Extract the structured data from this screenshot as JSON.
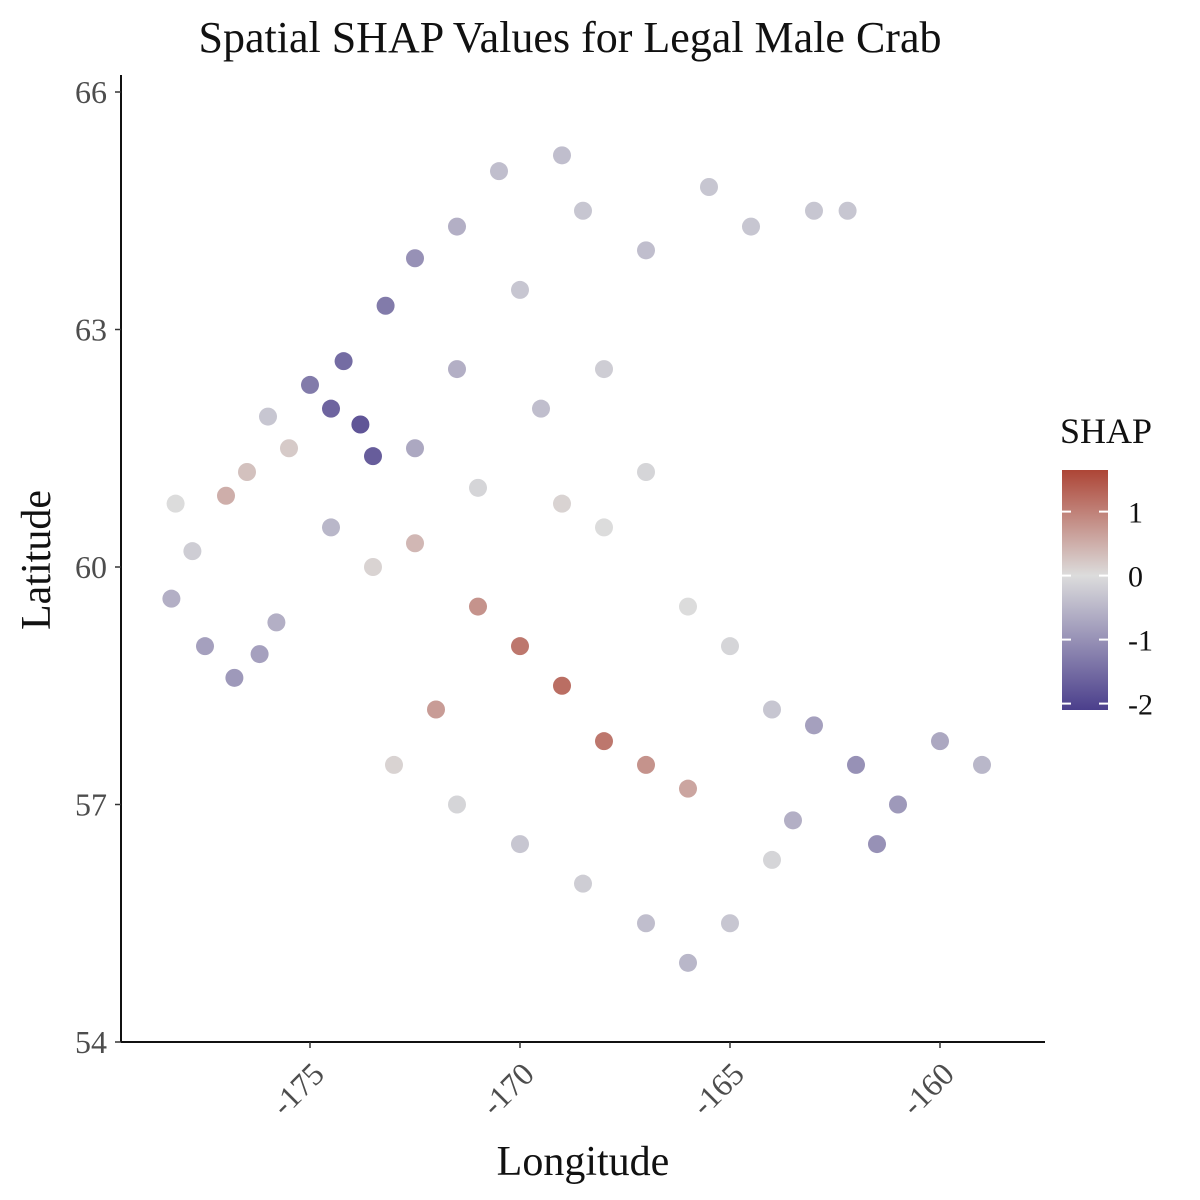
{
  "chart_data": {
    "type": "scatter",
    "title": "Spatial SHAP Values for Legal Male Crab",
    "xlabel": "Longitude",
    "ylabel": "Latitude",
    "xlim": [
      -179.5,
      -157.5
    ],
    "ylim": [
      54,
      66
    ],
    "x_ticks": [
      -175,
      -170,
      -165,
      -160
    ],
    "x_tick_labels": [
      "-175",
      "-170",
      "-165",
      "-160"
    ],
    "y_ticks": [
      54,
      57,
      60,
      63,
      66
    ],
    "y_tick_labels": [
      "54",
      "57",
      "60",
      "63",
      "66"
    ],
    "grid": false,
    "legend": {
      "title": "SHAP",
      "placement": "right",
      "range": [
        -2.1,
        1.65
      ],
      "breaks": [
        1,
        0,
        -1,
        -2
      ],
      "break_labels": [
        "1",
        "0",
        "-1",
        "-2"
      ],
      "colors": {
        "low": "#4b3f8c",
        "mid": "#dcdcdc",
        "high": "#ad4536"
      }
    },
    "point_color_default": "#c9c5dc",
    "series": [
      {
        "values_format": "[longitude, latitude, shap] for representative sampled points",
        "points": [
          [
            -178.2,
            60.8,
            0.0
          ],
          [
            -177.8,
            60.2,
            -0.2
          ],
          [
            -178.3,
            59.6,
            -0.6
          ],
          [
            -177.5,
            59.0,
            -0.8
          ],
          [
            -176.8,
            58.6,
            -0.9
          ],
          [
            -176.2,
            58.9,
            -0.8
          ],
          [
            -175.8,
            59.3,
            -0.6
          ],
          [
            -177.0,
            60.9,
            0.5
          ],
          [
            -176.5,
            61.2,
            0.3
          ],
          [
            -175.5,
            61.5,
            0.2
          ],
          [
            -176.0,
            61.9,
            -0.3
          ],
          [
            -175.0,
            62.3,
            -1.3
          ],
          [
            -174.5,
            62.0,
            -1.6
          ],
          [
            -173.8,
            61.8,
            -1.8
          ],
          [
            -173.5,
            61.4,
            -1.7
          ],
          [
            -174.2,
            62.6,
            -1.5
          ],
          [
            -173.2,
            63.3,
            -1.3
          ],
          [
            -172.5,
            63.9,
            -1.0
          ],
          [
            -171.5,
            64.3,
            -0.6
          ],
          [
            -170.5,
            65.0,
            -0.4
          ],
          [
            -169.0,
            65.2,
            -0.4
          ],
          [
            -168.5,
            64.5,
            -0.3
          ],
          [
            -167.0,
            64.0,
            -0.4
          ],
          [
            -165.5,
            64.8,
            -0.3
          ],
          [
            -164.5,
            64.3,
            -0.3
          ],
          [
            -163.0,
            64.5,
            -0.3
          ],
          [
            -162.2,
            64.5,
            -0.3
          ],
          [
            -170.0,
            63.5,
            -0.3
          ],
          [
            -168.0,
            62.5,
            -0.2
          ],
          [
            -169.5,
            62.0,
            -0.4
          ],
          [
            -171.5,
            62.5,
            -0.6
          ],
          [
            -172.5,
            61.5,
            -0.7
          ],
          [
            -171.0,
            61.0,
            -0.1
          ],
          [
            -169.0,
            60.8,
            0.1
          ],
          [
            -168.0,
            60.5,
            0.0
          ],
          [
            -167.0,
            61.2,
            -0.1
          ],
          [
            -172.5,
            60.3,
            0.4
          ],
          [
            -171.0,
            59.5,
            0.8
          ],
          [
            -170.0,
            59.0,
            1.1
          ],
          [
            -169.0,
            58.5,
            1.2
          ],
          [
            -168.0,
            57.8,
            1.1
          ],
          [
            -167.0,
            57.5,
            0.8
          ],
          [
            -166.0,
            57.2,
            0.6
          ],
          [
            -172.0,
            58.2,
            0.7
          ],
          [
            -173.0,
            57.5,
            0.1
          ],
          [
            -171.5,
            57.0,
            -0.1
          ],
          [
            -170.0,
            56.5,
            -0.3
          ],
          [
            -168.5,
            56.0,
            -0.2
          ],
          [
            -167.0,
            55.5,
            -0.4
          ],
          [
            -166.0,
            55.0,
            -0.5
          ],
          [
            -165.0,
            55.5,
            -0.3
          ],
          [
            -164.0,
            56.3,
            -0.1
          ],
          [
            -166.0,
            59.5,
            0.0
          ],
          [
            -165.0,
            59.0,
            -0.1
          ],
          [
            -164.0,
            58.2,
            -0.3
          ],
          [
            -163.0,
            58.0,
            -0.8
          ],
          [
            -162.0,
            57.5,
            -1.0
          ],
          [
            -161.0,
            57.0,
            -0.9
          ],
          [
            -160.0,
            57.8,
            -0.7
          ],
          [
            -159.0,
            57.5,
            -0.5
          ],
          [
            -161.5,
            56.5,
            -1.0
          ],
          [
            -163.5,
            56.8,
            -0.6
          ],
          [
            -174.5,
            60.5,
            -0.5
          ],
          [
            -173.5,
            60.0,
            0.1
          ]
        ]
      }
    ]
  }
}
